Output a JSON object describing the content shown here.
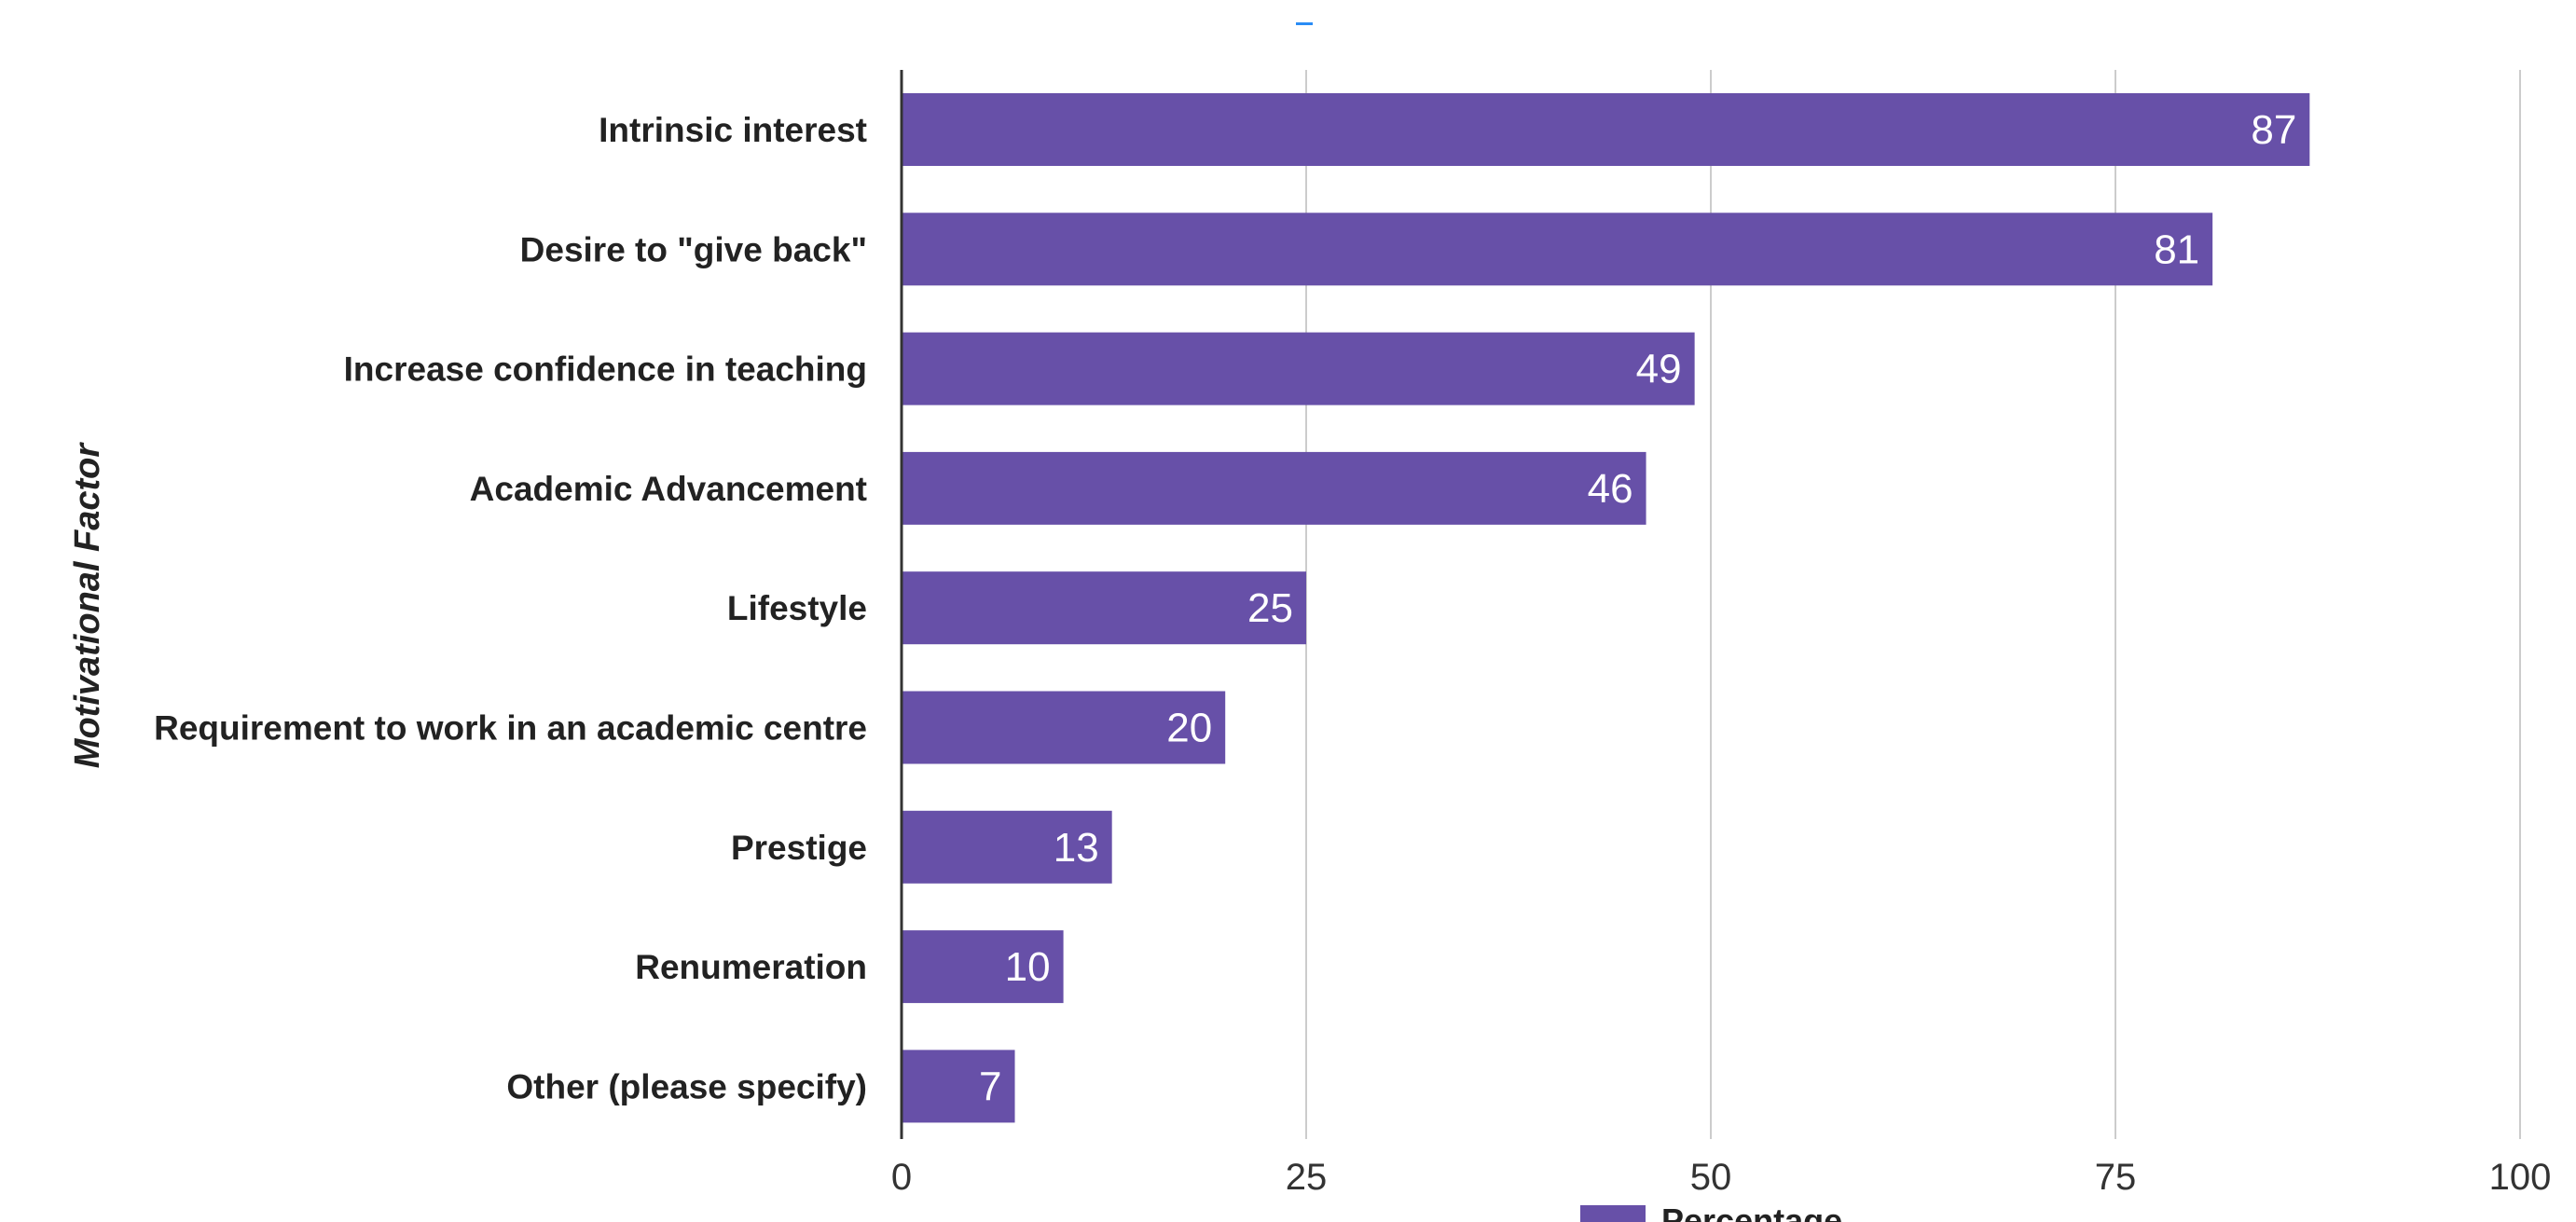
{
  "chart_data": {
    "type": "bar",
    "orientation": "horizontal",
    "categories": [
      "Intrinsic interest",
      "Desire to \"give back\"",
      "Increase confidence in teaching",
      "Academic Advancement",
      "Lifestyle",
      "Requirement to work in an academic centre",
      "Prestige",
      "Renumeration",
      "Other (please specify)"
    ],
    "series": [
      {
        "name": "Percentage",
        "values": [
          87,
          81,
          49,
          46,
          25,
          20,
          13,
          10,
          7
        ],
        "color": "#6750a8"
      }
    ],
    "xlabel": "",
    "ylabel": "Motivational Factor",
    "xlim": [
      0,
      100
    ],
    "xticks": [
      0,
      25,
      50,
      75,
      100
    ],
    "xtick_labels": [
      "0",
      "25",
      "50",
      "75",
      "100"
    ],
    "grid": true,
    "legend": "bottom",
    "data_labels": true
  }
}
